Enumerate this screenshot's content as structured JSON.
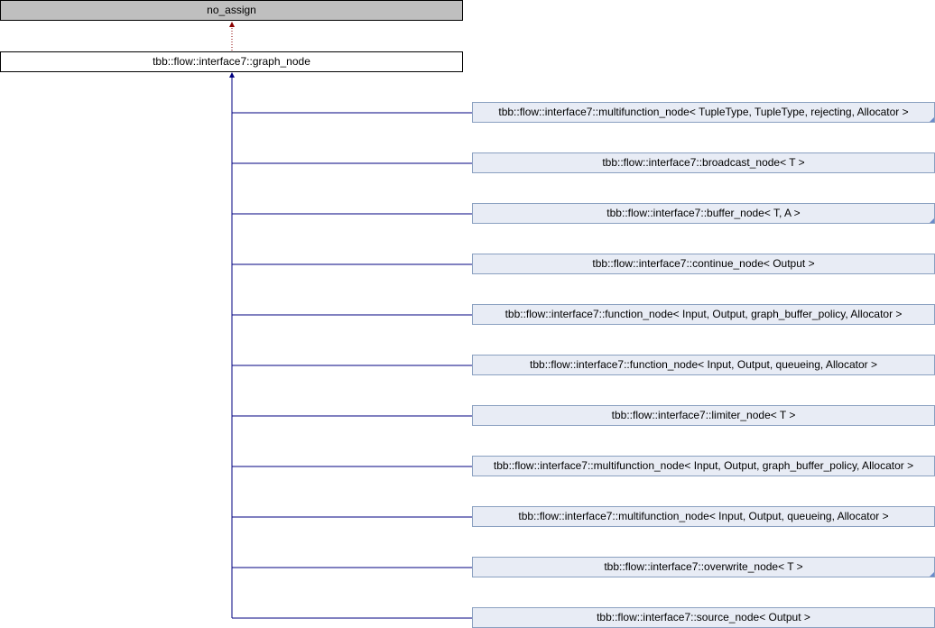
{
  "base": {
    "label": "no_assign"
  },
  "parent": {
    "label": "tbb::flow::interface7::graph_node"
  },
  "colors": {
    "inheritance_edge": "#000080",
    "private_edge": "#8b0000",
    "base_fill": "#bfbfbf",
    "child_fill": "#e8ecf5"
  },
  "children": [
    {
      "label": "tbb::flow::interface7::multifunction_node< TupleType, TupleType, rejecting, Allocator >",
      "has_more": true
    },
    {
      "label": "tbb::flow::interface7::broadcast_node< T >",
      "has_more": false
    },
    {
      "label": "tbb::flow::interface7::buffer_node< T, A >",
      "has_more": true
    },
    {
      "label": "tbb::flow::interface7::continue_node< Output >",
      "has_more": false
    },
    {
      "label": "tbb::flow::interface7::function_node< Input, Output, graph_buffer_policy, Allocator >",
      "has_more": false
    },
    {
      "label": "tbb::flow::interface7::function_node< Input, Output, queueing, Allocator >",
      "has_more": false
    },
    {
      "label": "tbb::flow::interface7::limiter_node< T >",
      "has_more": false
    },
    {
      "label": "tbb::flow::interface7::multifunction_node< Input, Output, graph_buffer_policy, Allocator >",
      "has_more": false
    },
    {
      "label": "tbb::flow::interface7::multifunction_node< Input, Output, queueing, Allocator >",
      "has_more": false
    },
    {
      "label": "tbb::flow::interface7::overwrite_node< T >",
      "has_more": true
    },
    {
      "label": "tbb::flow::interface7::source_node< Output >",
      "has_more": false
    }
  ]
}
